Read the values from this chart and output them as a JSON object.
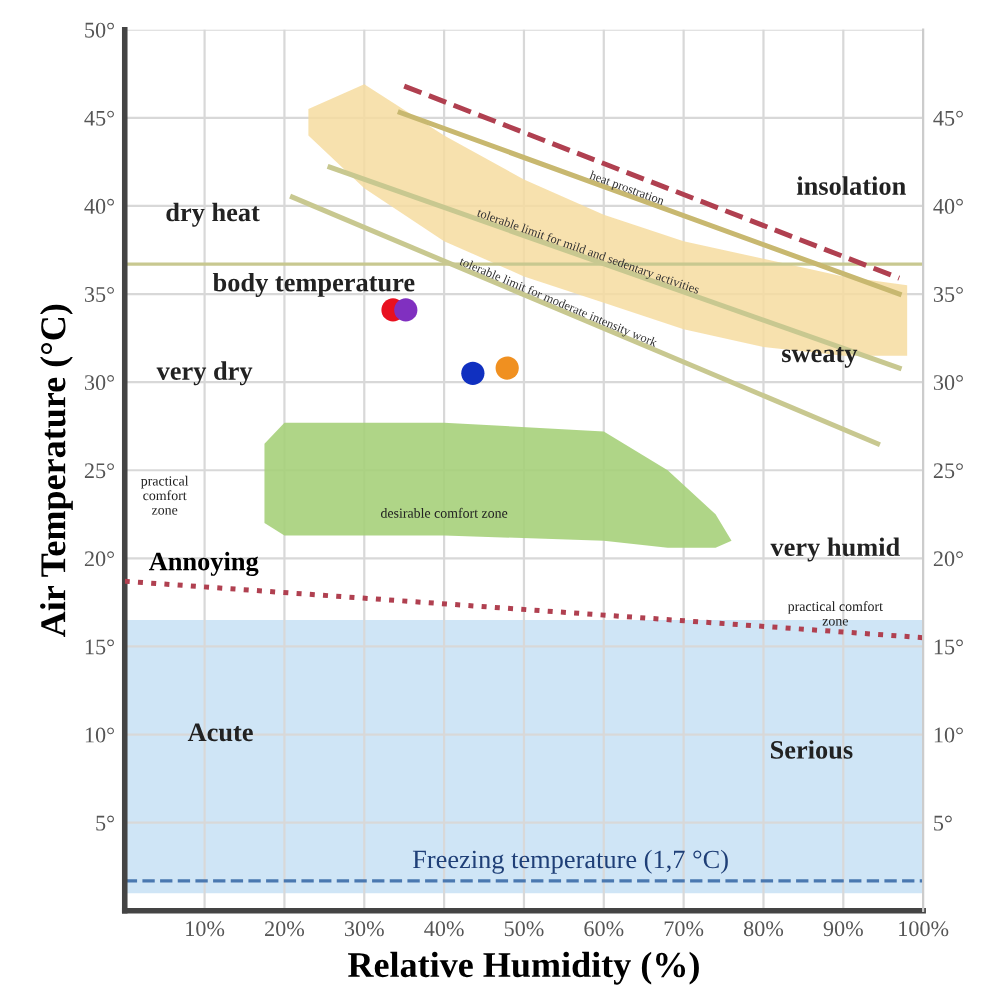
{
  "chart_data": {
    "type": "scatter",
    "xlabel": "Relative Humidity (%)",
    "ylabel": "Air Temperature (°C)",
    "xlim": [
      0,
      100
    ],
    "ylim": [
      0,
      50
    ],
    "y2lim": [
      0,
      50
    ],
    "xticks": [
      {
        "value": 10,
        "label": "10%"
      },
      {
        "value": 20,
        "label": "20%"
      },
      {
        "value": 30,
        "label": "30%"
      },
      {
        "value": 40,
        "label": "40%"
      },
      {
        "value": 50,
        "label": "50%"
      },
      {
        "value": 60,
        "label": "60%"
      },
      {
        "value": 70,
        "label": "70%"
      },
      {
        "value": 80,
        "label": "80%"
      },
      {
        "value": 90,
        "label": "90%"
      },
      {
        "value": 100,
        "label": "100%"
      }
    ],
    "yticks": [
      {
        "value": 5,
        "label": "5°"
      },
      {
        "value": 10,
        "label": "10°"
      },
      {
        "value": 15,
        "label": "15°"
      },
      {
        "value": 20,
        "label": "20°"
      },
      {
        "value": 25,
        "label": "25°"
      },
      {
        "value": 30,
        "label": "30°"
      },
      {
        "value": 35,
        "label": "35°"
      },
      {
        "value": 40,
        "label": "40°"
      },
      {
        "value": 45,
        "label": "45°"
      },
      {
        "value": 50,
        "label": "50°"
      }
    ],
    "y2ticks": [
      {
        "value": 5,
        "label": "5°"
      },
      {
        "value": 10,
        "label": "10°"
      },
      {
        "value": 15,
        "label": "15°"
      },
      {
        "value": 20,
        "label": "20°"
      },
      {
        "value": 25,
        "label": "25°"
      },
      {
        "value": 30,
        "label": "30°"
      },
      {
        "value": 35,
        "label": "35°"
      },
      {
        "value": 40,
        "label": "40°"
      },
      {
        "value": 45,
        "label": "45°"
      }
    ],
    "grid": true,
    "legend": false,
    "bands": [
      {
        "axis": "y",
        "from": 1,
        "to": 16.5,
        "color": "#cfe5f6"
      }
    ],
    "ref_lines": [
      {
        "axis": "y",
        "value": 36.7,
        "label": "body temperature",
        "color": "#c8c890",
        "line_style": "solid"
      },
      {
        "axis": "y",
        "value": 1.7,
        "label": "Freezing temperature (1,7 °C)",
        "color": "#4a78b0",
        "line_style": "dashed"
      }
    ],
    "series": [
      {
        "type": "line",
        "color": "#b04050",
        "line_style": "dashed",
        "x": [
          35,
          97
        ],
        "values": [
          46.8,
          35.9
        ]
      },
      {
        "type": "line",
        "name": "heat prostration",
        "color": "#c8b870",
        "line_style": "solid",
        "x": [
          34.5,
          97
        ],
        "values": [
          45.3,
          35
        ]
      },
      {
        "type": "line",
        "name": "tolerable limit for mild and sedentary activities",
        "color": "#c8c890",
        "line_style": "solid",
        "x": [
          25.7,
          97
        ],
        "values": [
          42.2,
          30.8
        ]
      },
      {
        "type": "line",
        "name": "tolerable limit for moderate intensity work",
        "color": "#c8c890",
        "line_style": "solid",
        "x": [
          21,
          94.3
        ],
        "values": [
          40.5,
          26.5
        ]
      },
      {
        "type": "line",
        "name": "Annoying",
        "color": "#b04050",
        "line_style": "dotted",
        "x": [
          0,
          100
        ],
        "values": [
          18.7,
          15.5
        ]
      },
      {
        "color": "#e81020",
        "x": [
          33.6
        ],
        "values": [
          34.1
        ]
      },
      {
        "color": "#8030c0",
        "x": [
          35.2
        ],
        "values": [
          34.1
        ]
      },
      {
        "color": "#1030c0",
        "x": [
          43.6
        ],
        "values": [
          30.5
        ]
      },
      {
        "color": "#f09020",
        "x": [
          47.9
        ],
        "values": [
          30.8
        ]
      }
    ],
    "annotations": [
      "dry heat",
      "very dry",
      "sweaty",
      "insolation",
      "very humid",
      "desirable comfort zone",
      "practical\ncomfort\nzone",
      "practical comfort\nzone",
      "Acute",
      "Serious"
    ]
  }
}
